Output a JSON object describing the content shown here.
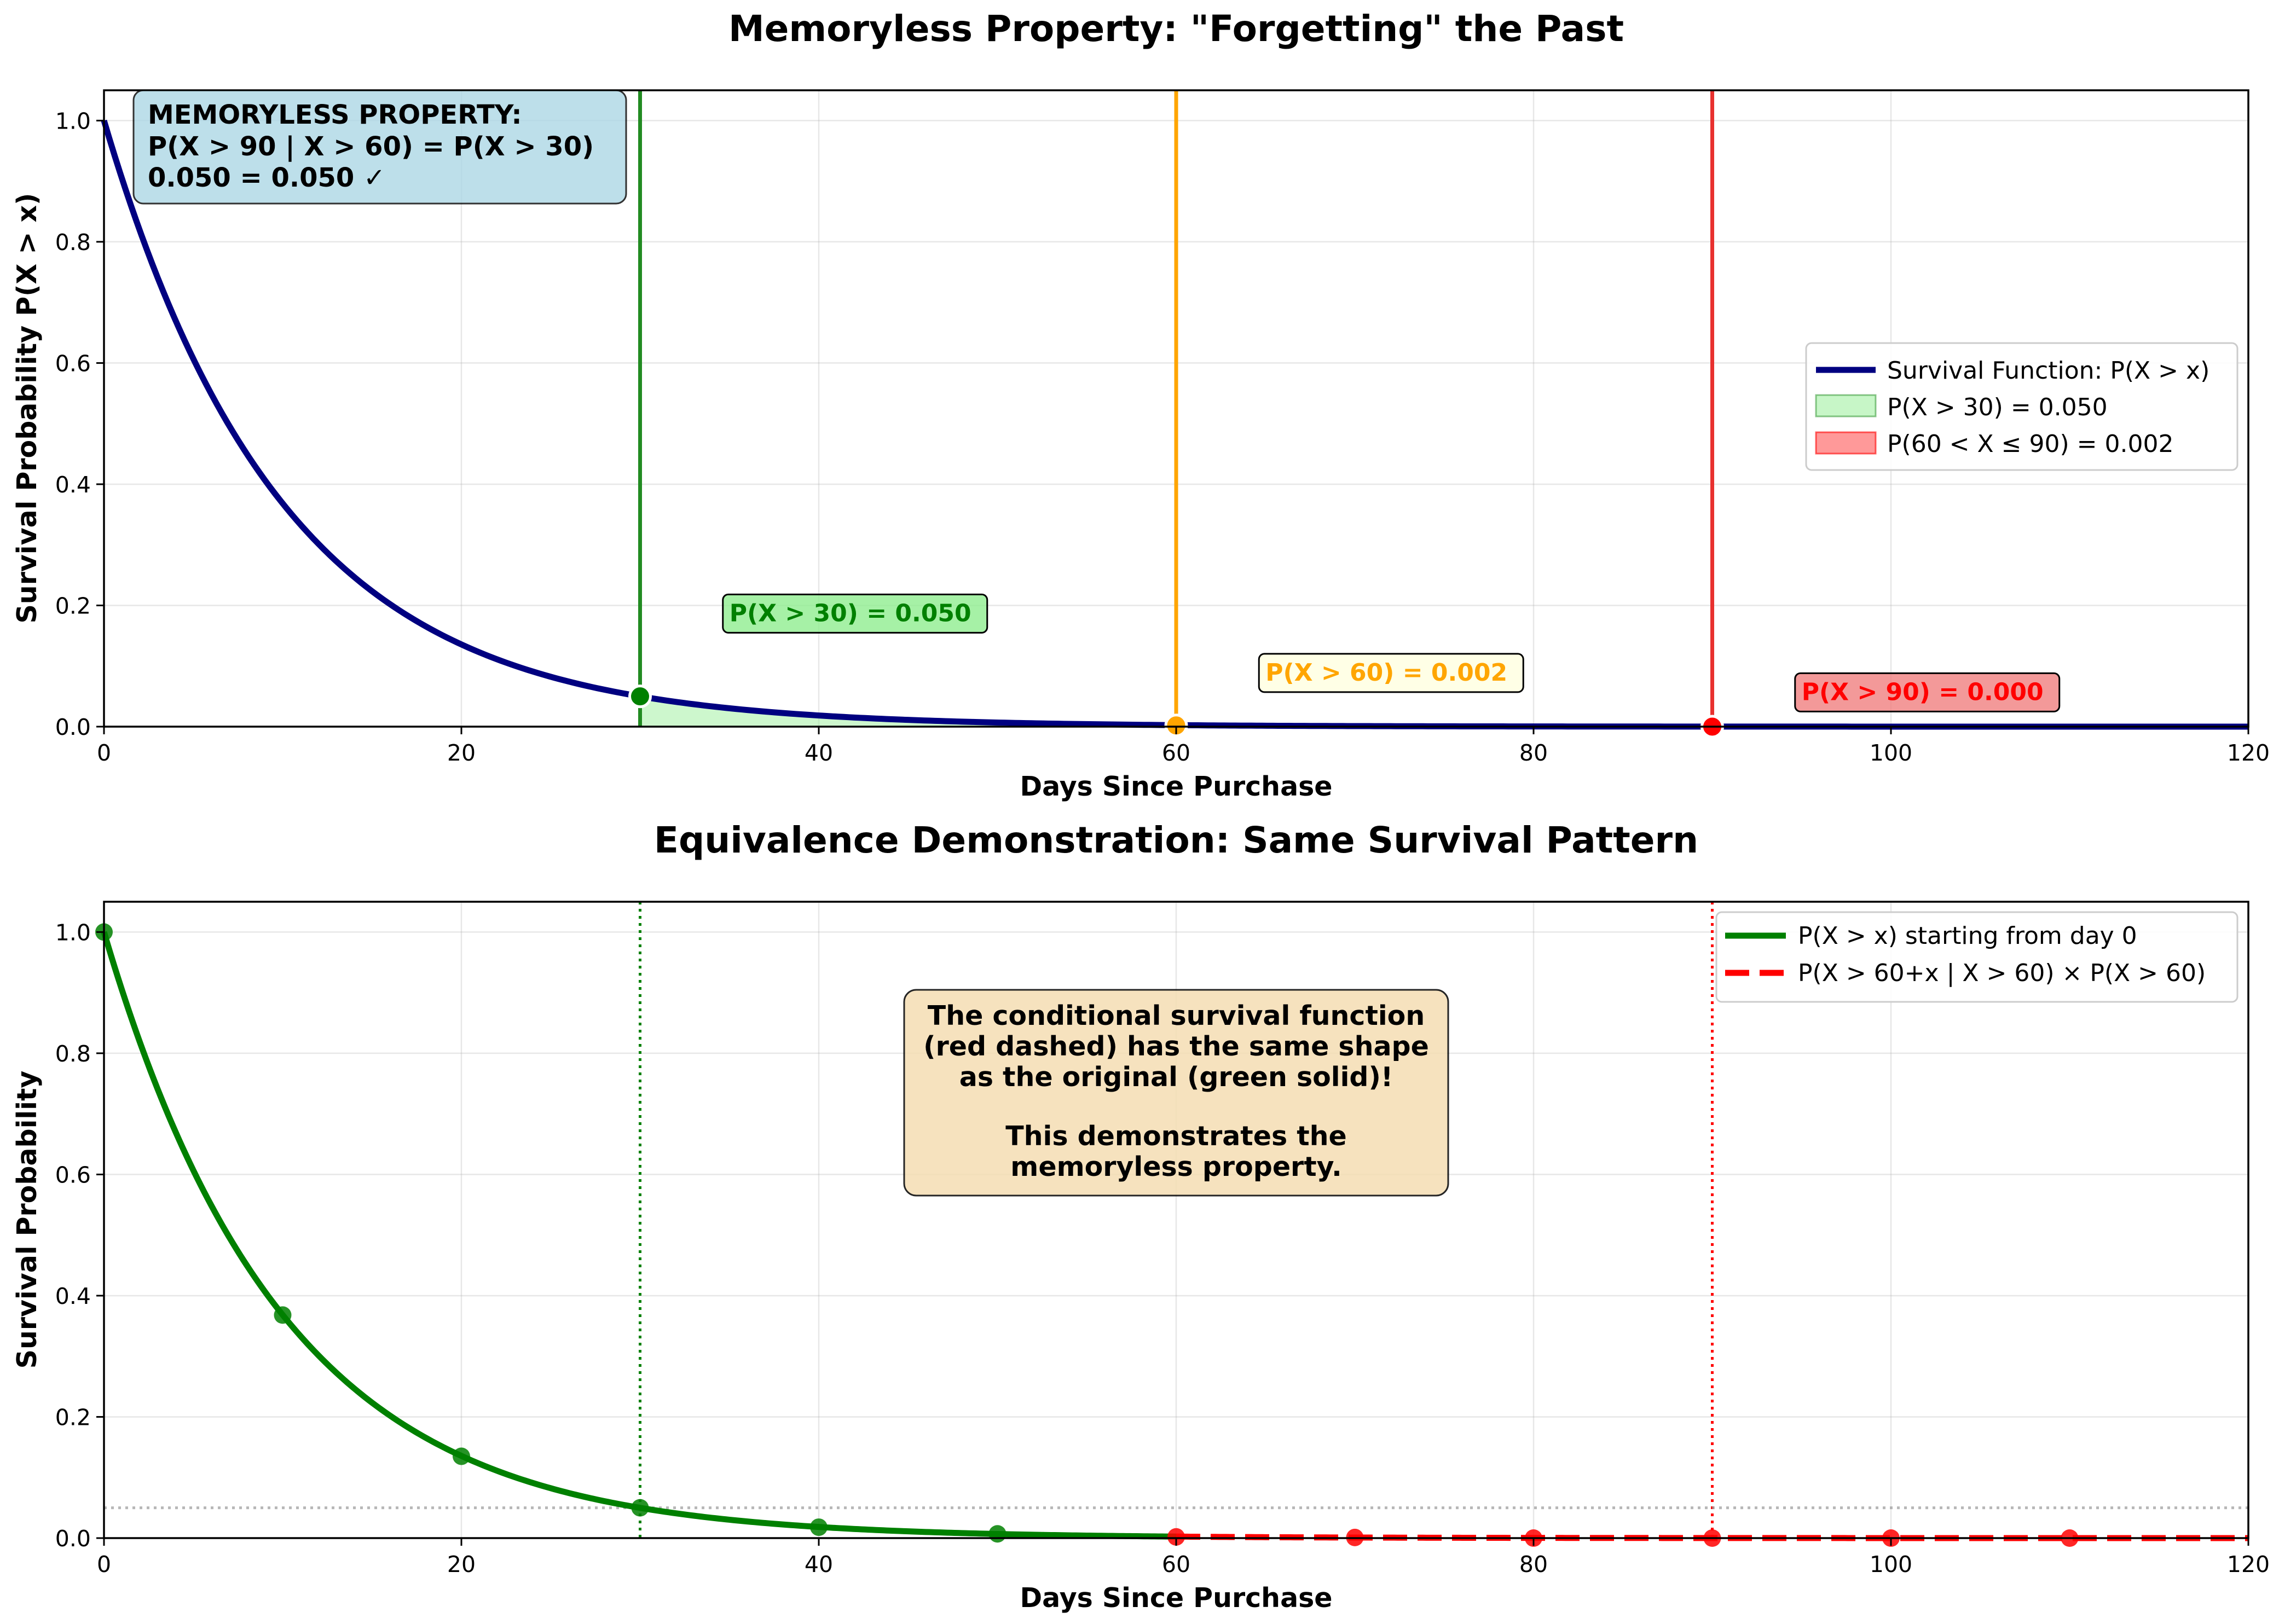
{
  "colors": {
    "survival": "#000080",
    "green": "#008000",
    "orange": "#FFA500",
    "red": "#FF0000",
    "shade_green": "#90EE90",
    "shade_red": "#FF0000",
    "box_blue": "#ADD8E6",
    "box_green": "#90EE90",
    "box_orange": "#FFFFE0",
    "box_red": "#F08080",
    "box_wheat": "#F5DEB3",
    "grid": "#b0b0b0"
  },
  "chart_data": [
    {
      "type": "line",
      "title": "Memoryless Property: \"Forgetting\" the Past",
      "xlabel": "Days Since Purchase",
      "ylabel": "Survival Probability P(X > x)",
      "xlim": [
        0,
        120
      ],
      "ylim": [
        0,
        1.05
      ],
      "x_ticks": [
        0,
        20,
        40,
        60,
        80,
        100,
        120
      ],
      "y_ticks": [
        0.0,
        0.2,
        0.4,
        0.6,
        0.8,
        1.0
      ],
      "grid": true,
      "legend_position": "center-right",
      "rate": 0.0999,
      "series": [
        {
          "name": "Survival Function: P(X > x)",
          "function": "exp(-rate*x)",
          "x_range": [
            0,
            120
          ],
          "color": "#000080"
        }
      ],
      "shaded_regions": [
        {
          "name": "P(X > 30) = 0.050",
          "x_range": [
            30,
            120
          ],
          "color": "#90EE90"
        },
        {
          "name": "P(60 < X ≤ 90) = 0.002",
          "x_range": [
            60,
            90
          ],
          "color": "#FF0000"
        }
      ],
      "vertical_lines": [
        {
          "x": 30,
          "color": "#228B22"
        },
        {
          "x": 60,
          "color": "#FFA500"
        },
        {
          "x": 90,
          "color": "#E8312F"
        }
      ],
      "markers": [
        {
          "x": 30,
          "y": 0.05,
          "color": "#008000"
        },
        {
          "x": 60,
          "y": 0.002,
          "color": "#FFA500"
        },
        {
          "x": 90,
          "y": 0.0,
          "color": "#FF0000"
        }
      ],
      "annotations": [
        {
          "text": "P(X > 30) = 0.050",
          "x": 35,
          "y": 0.164,
          "color": "#008000",
          "box": "#90EE90"
        },
        {
          "text": "P(X > 60) = 0.002",
          "x": 65,
          "y": 0.066,
          "color": "#FFA500",
          "box": "#FFFFE0"
        },
        {
          "text": "P(X > 90) = 0.000",
          "x": 95,
          "y": 0.034,
          "color": "#FF0000",
          "box": "#F08080"
        }
      ],
      "info_box": {
        "lines": [
          "MEMORYLESS PROPERTY:",
          "P(X > 90 | X > 60) = P(X > 30)",
          "0.050 = 0.050 ✓"
        ]
      }
    },
    {
      "type": "line",
      "title": "Equivalence Demonstration: Same Survival Pattern",
      "xlabel": "Days Since Purchase",
      "ylabel": "Survival Probability",
      "xlim": [
        0,
        120
      ],
      "ylim": [
        0,
        1.05
      ],
      "x_ticks": [
        0,
        20,
        40,
        60,
        80,
        100,
        120
      ],
      "y_ticks": [
        0.0,
        0.2,
        0.4,
        0.6,
        0.8,
        1.0
      ],
      "grid": true,
      "legend_position": "top-right",
      "series": [
        {
          "name": "P(X > x) starting from day 0",
          "style": "solid",
          "color": "#008000",
          "function": "exp(-rate*x)",
          "x_range": [
            0,
            60
          ],
          "points": {
            "x": [
              0,
              10,
              20,
              30,
              40,
              50
            ],
            "y": [
              1.0,
              0.368,
              0.135,
              0.05,
              0.018,
              0.007
            ]
          }
        },
        {
          "name": "P(X > 60+x | X > 60) × P(X > 60)",
          "style": "dashed",
          "color": "#FF0000",
          "function": "exp(-rate*x)",
          "x_range": [
            60,
            120
          ],
          "points": {
            "x": [
              60,
              70,
              80,
              90,
              100,
              110
            ],
            "y": [
              0.002,
              0.001,
              0.0,
              0.0,
              0.0,
              0.0
            ]
          }
        }
      ],
      "reference_lines": [
        {
          "axis": "x",
          "value": 30,
          "color": "#008000",
          "style": "dotted"
        },
        {
          "axis": "x",
          "value": 90,
          "color": "#FF0000",
          "style": "dotted"
        },
        {
          "axis": "y",
          "value": 0.05,
          "color": "#999999",
          "style": "dotted"
        }
      ],
      "text_box": {
        "lines": [
          "The conditional survival function",
          "(red dashed) has the same shape",
          "as the original (green solid)!",
          "",
          "This demonstrates the",
          "memoryless property."
        ]
      }
    }
  ]
}
